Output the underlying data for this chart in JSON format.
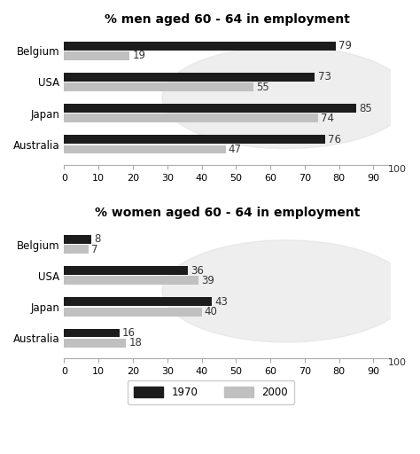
{
  "men_title": "% men aged 60 - 64 in employment",
  "women_title": "% women aged 60 - 64 in employment",
  "countries": [
    "Belgium",
    "USA",
    "Japan",
    "Australia"
  ],
  "men_1970": [
    79,
    73,
    85,
    76
  ],
  "men_2000": [
    19,
    55,
    74,
    47
  ],
  "women_1970": [
    8,
    36,
    43,
    16
  ],
  "women_2000": [
    7,
    39,
    40,
    18
  ],
  "color_1970": "#1c1c1c",
  "color_2000": "#c0c0c0",
  "bar_height": 0.28,
  "xlim": [
    0,
    95
  ],
  "xticks": [
    0,
    10,
    20,
    30,
    40,
    50,
    60,
    70,
    80,
    90
  ],
  "label_fontsize": 8.5,
  "title_fontsize": 10,
  "tick_fontsize": 8,
  "legend_1970": "1970",
  "legend_2000": "2000",
  "bg_color": "#ffffff"
}
